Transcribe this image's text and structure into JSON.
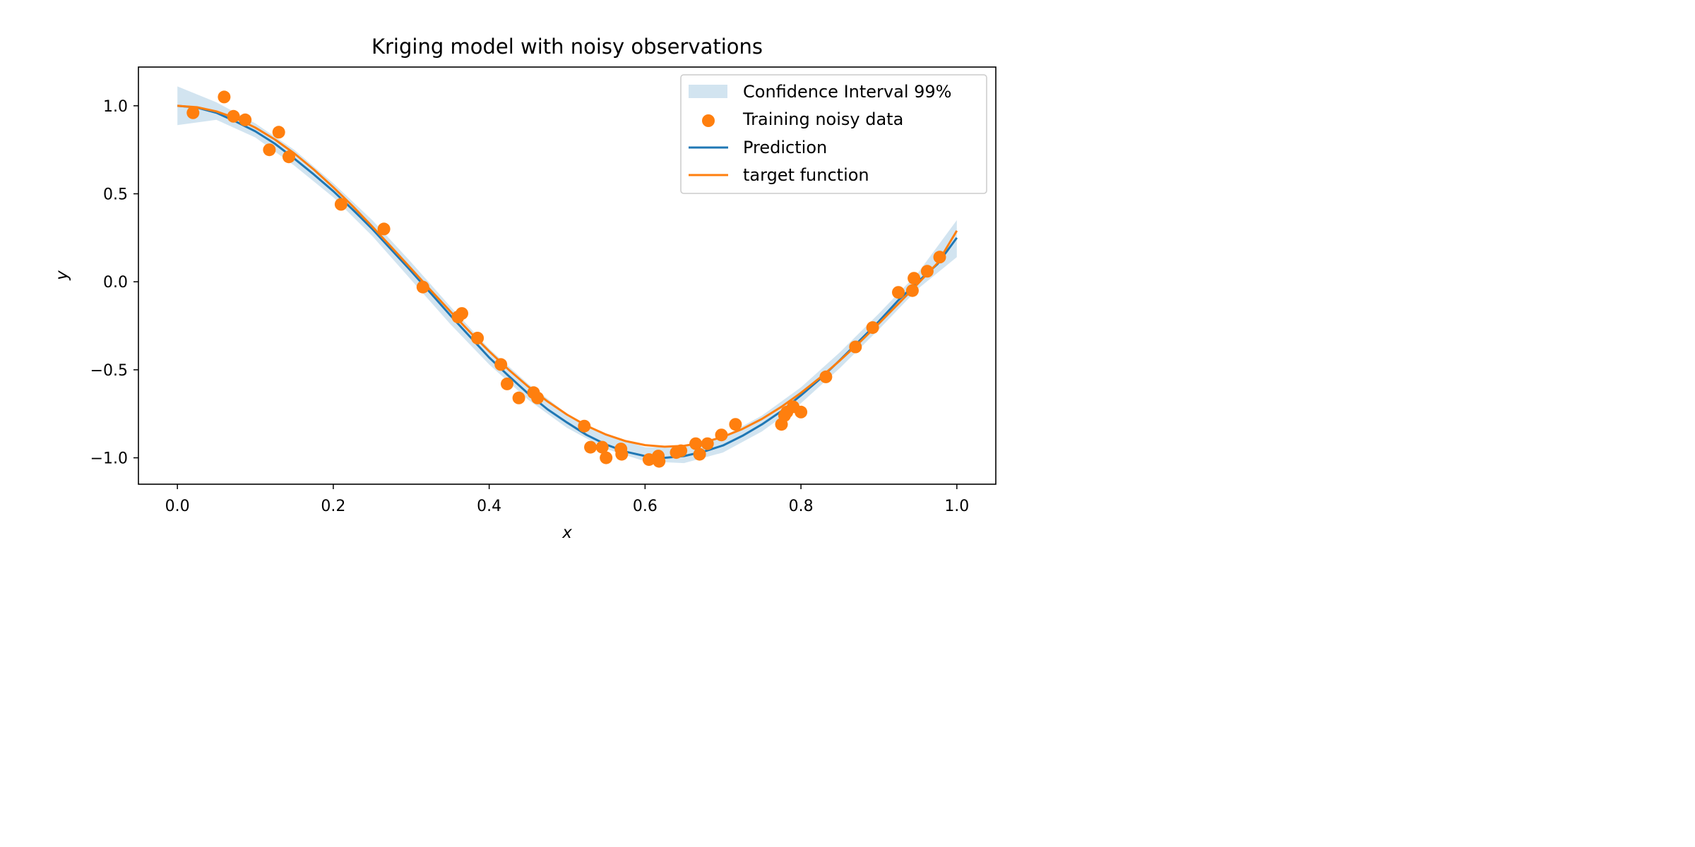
{
  "chart_data": {
    "type": "line",
    "title": "Kriging model with noisy observations",
    "xlabel": "x",
    "ylabel": "y",
    "xlim": [
      -0.05,
      1.05
    ],
    "ylim": [
      -1.15,
      1.22
    ],
    "xticks": [
      0.0,
      0.2,
      0.4,
      0.6,
      0.8,
      1.0
    ],
    "xtick_labels": [
      "0.0",
      "0.2",
      "0.4",
      "0.6",
      "0.8",
      "1.0"
    ],
    "yticks": [
      1.0,
      0.5,
      0.0,
      -0.5,
      -1.0
    ],
    "ytick_labels": [
      "1.0",
      "0.5",
      "0.0",
      "−0.5",
      "−1.0"
    ],
    "grid": false,
    "legend_position": "top-right",
    "colors": {
      "band": "#1f77b4",
      "prediction": "#1f77b4",
      "target": "#ff7f0e",
      "points": "#ff7f0e"
    },
    "legend": [
      {
        "label": "Confidence Interval 99%",
        "kind": "band"
      },
      {
        "label": "Training noisy data",
        "kind": "scatter"
      },
      {
        "label": "Prediction",
        "kind": "prediction"
      },
      {
        "label": "target function",
        "kind": "target"
      }
    ],
    "target_function": {
      "x": [
        0.0,
        0.025,
        0.05,
        0.075,
        0.1,
        0.125,
        0.15,
        0.175,
        0.2,
        0.225,
        0.25,
        0.275,
        0.3,
        0.325,
        0.35,
        0.375,
        0.4,
        0.425,
        0.45,
        0.475,
        0.5,
        0.525,
        0.55,
        0.575,
        0.6,
        0.625,
        0.65,
        0.675,
        0.7,
        0.725,
        0.75,
        0.775,
        0.8,
        0.825,
        0.85,
        0.875,
        0.9,
        0.925,
        0.95,
        0.975,
        1.0
      ],
      "y": [
        1.0,
        0.992,
        0.968,
        0.929,
        0.876,
        0.809,
        0.729,
        0.638,
        0.537,
        0.429,
        0.314,
        0.195,
        0.074,
        -0.048,
        -0.168,
        -0.284,
        -0.395,
        -0.499,
        -0.595,
        -0.68,
        -0.755,
        -0.818,
        -0.868,
        -0.905,
        -0.928,
        -0.937,
        -0.932,
        -0.913,
        -0.881,
        -0.836,
        -0.779,
        -0.71,
        -0.631,
        -0.543,
        -0.447,
        -0.345,
        -0.237,
        -0.125,
        -0.011,
        0.105,
        0.29
      ]
    },
    "prediction": {
      "x": [
        0.0,
        0.025,
        0.05,
        0.075,
        0.1,
        0.125,
        0.15,
        0.175,
        0.2,
        0.225,
        0.25,
        0.275,
        0.3,
        0.325,
        0.35,
        0.375,
        0.4,
        0.425,
        0.45,
        0.475,
        0.5,
        0.525,
        0.55,
        0.575,
        0.6,
        0.625,
        0.65,
        0.675,
        0.7,
        0.725,
        0.75,
        0.775,
        0.8,
        0.825,
        0.85,
        0.875,
        0.9,
        0.925,
        0.95,
        0.975,
        1.0
      ],
      "y": [
        1.0,
        0.99,
        0.96,
        0.91,
        0.855,
        0.785,
        0.7,
        0.61,
        0.515,
        0.41,
        0.3,
        0.18,
        0.06,
        -0.065,
        -0.19,
        -0.31,
        -0.43,
        -0.535,
        -0.635,
        -0.725,
        -0.8,
        -0.87,
        -0.925,
        -0.965,
        -0.99,
        -1.0,
        -0.99,
        -0.965,
        -0.93,
        -0.875,
        -0.81,
        -0.735,
        -0.645,
        -0.55,
        -0.445,
        -0.335,
        -0.225,
        -0.105,
        0.0,
        0.1,
        0.25
      ]
    },
    "confidence_interval_99": {
      "x": [
        0.0,
        0.05,
        0.1,
        0.15,
        0.2,
        0.25,
        0.3,
        0.35,
        0.4,
        0.45,
        0.5,
        0.55,
        0.6,
        0.65,
        0.7,
        0.75,
        0.8,
        0.85,
        0.9,
        0.95,
        1.0
      ],
      "lower": [
        0.89,
        0.92,
        0.82,
        0.66,
        0.48,
        0.26,
        0.01,
        -0.24,
        -0.47,
        -0.67,
        -0.83,
        -0.95,
        -1.02,
        -1.03,
        -0.97,
        -0.85,
        -0.69,
        -0.49,
        -0.27,
        -0.04,
        0.14
      ],
      "upper": [
        1.11,
        1.02,
        0.9,
        0.75,
        0.56,
        0.35,
        0.11,
        -0.14,
        -0.38,
        -0.58,
        -0.75,
        -0.87,
        -0.94,
        -0.94,
        -0.88,
        -0.76,
        -0.6,
        -0.4,
        -0.18,
        0.05,
        0.35
      ]
    },
    "training_noisy_data": [
      [
        0.02,
        0.96
      ],
      [
        0.06,
        1.05
      ],
      [
        0.072,
        0.94
      ],
      [
        0.087,
        0.92
      ],
      [
        0.118,
        0.75
      ],
      [
        0.13,
        0.85
      ],
      [
        0.143,
        0.71
      ],
      [
        0.21,
        0.44
      ],
      [
        0.265,
        0.3
      ],
      [
        0.315,
        -0.03
      ],
      [
        0.36,
        -0.2
      ],
      [
        0.365,
        -0.18
      ],
      [
        0.385,
        -0.32
      ],
      [
        0.415,
        -0.47
      ],
      [
        0.423,
        -0.58
      ],
      [
        0.438,
        -0.66
      ],
      [
        0.457,
        -0.63
      ],
      [
        0.462,
        -0.66
      ],
      [
        0.522,
        -0.82
      ],
      [
        0.53,
        -0.94
      ],
      [
        0.545,
        -0.94
      ],
      [
        0.55,
        -1.0
      ],
      [
        0.569,
        -0.95
      ],
      [
        0.57,
        -0.98
      ],
      [
        0.605,
        -1.01
      ],
      [
        0.617,
        -0.99
      ],
      [
        0.618,
        -1.02
      ],
      [
        0.64,
        -0.97
      ],
      [
        0.646,
        -0.96
      ],
      [
        0.665,
        -0.92
      ],
      [
        0.67,
        -0.98
      ],
      [
        0.68,
        -0.92
      ],
      [
        0.698,
        -0.87
      ],
      [
        0.716,
        -0.81
      ],
      [
        0.775,
        -0.81
      ],
      [
        0.779,
        -0.76
      ],
      [
        0.782,
        -0.74
      ],
      [
        0.79,
        -0.71
      ],
      [
        0.8,
        -0.74
      ],
      [
        0.832,
        -0.54
      ],
      [
        0.87,
        -0.37
      ],
      [
        0.892,
        -0.26
      ],
      [
        0.925,
        -0.06
      ],
      [
        0.943,
        -0.05
      ],
      [
        0.945,
        0.02
      ],
      [
        0.962,
        0.06
      ],
      [
        0.978,
        0.14
      ]
    ]
  }
}
